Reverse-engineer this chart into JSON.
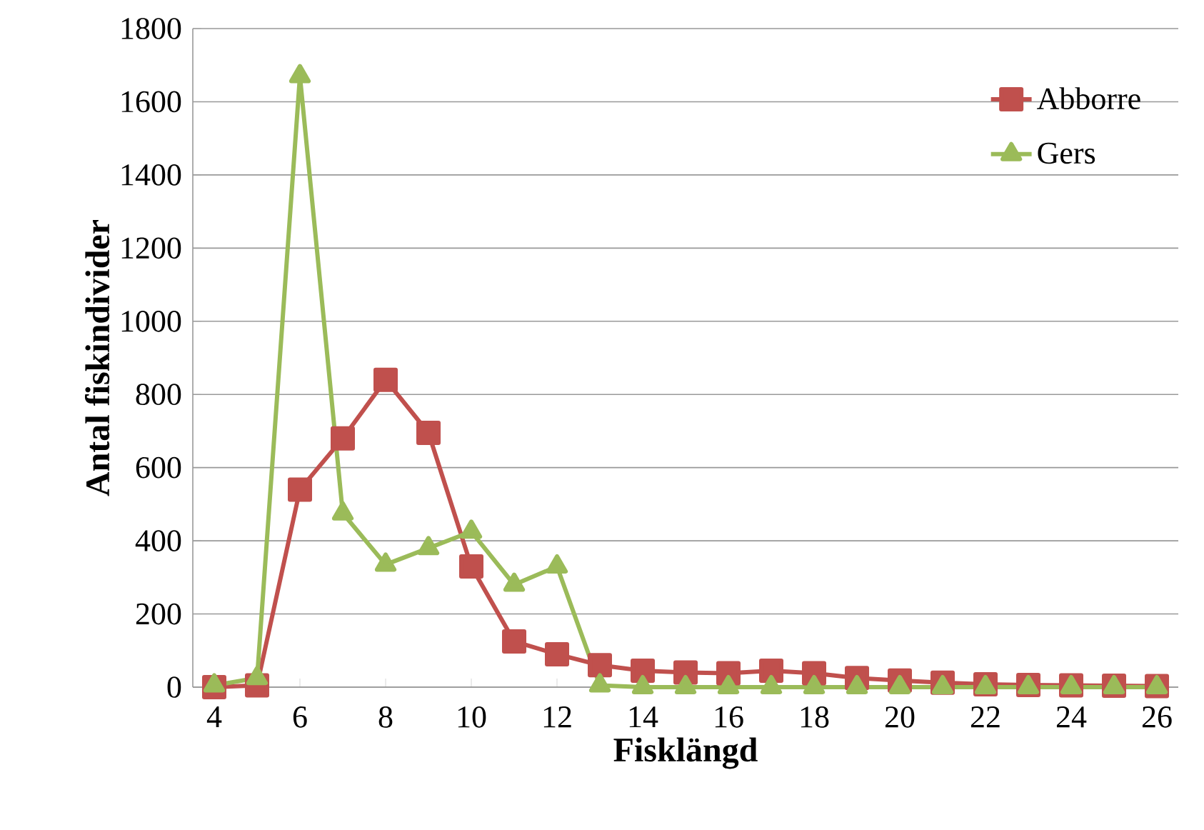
{
  "chart_data": {
    "type": "line",
    "xlabel": "Fisklängd",
    "ylabel": "Antal fiskindivider",
    "x": [
      4,
      5,
      6,
      7,
      8,
      9,
      10,
      11,
      12,
      13,
      14,
      15,
      16,
      17,
      18,
      19,
      20,
      21,
      22,
      23,
      24,
      25,
      26
    ],
    "series": [
      {
        "name": "Abborre",
        "color": "#c0504d",
        "marker": "square",
        "values": [
          0,
          5,
          540,
          680,
          840,
          695,
          330,
          125,
          90,
          60,
          45,
          40,
          38,
          45,
          38,
          25,
          18,
          12,
          8,
          6,
          5,
          4,
          3
        ]
      },
      {
        "name": "Gers",
        "color": "#9bbb59",
        "marker": "triangle",
        "values": [
          5,
          25,
          1670,
          475,
          335,
          380,
          425,
          280,
          330,
          5,
          0,
          0,
          0,
          0,
          0,
          0,
          0,
          0,
          0,
          0,
          0,
          0,
          0
        ]
      }
    ],
    "xlim": [
      3.5,
      26.5
    ],
    "xticks": [
      4,
      6,
      8,
      10,
      12,
      14,
      16,
      18,
      20,
      22,
      24,
      26
    ],
    "ylim": [
      0,
      1800
    ],
    "yticks": [
      0,
      200,
      400,
      600,
      800,
      1000,
      1200,
      1400,
      1600,
      1800
    ],
    "grid": "y",
    "legend": "top right"
  }
}
